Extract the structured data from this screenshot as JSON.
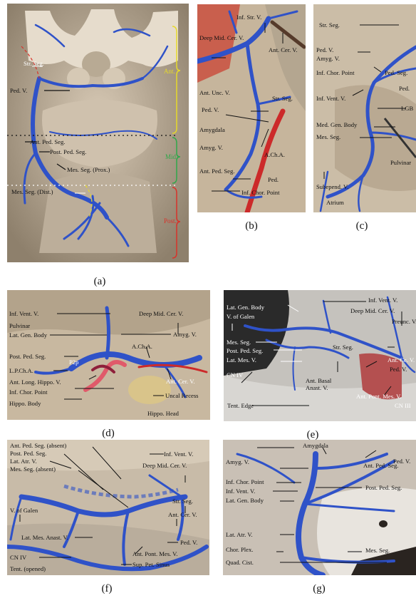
{
  "captions": {
    "a": "(a)",
    "b": "(b)",
    "c": "(c)",
    "d": "(d)",
    "e": "(e)",
    "f": "(f)",
    "g": "(g)"
  },
  "panel_a": {
    "str_seg": "Str. Seg.",
    "ped_v": "Ped. V.",
    "ant_ped_seg": "Ant. Ped. Seg.",
    "post_ped_seg": "Post. Ped. Seg.",
    "mes_seg_prox": "Mes. Seg. (Prox.)",
    "mes_seg_dist": "Mes. Seg. (Dist.)",
    "ant": "Ant.",
    "mid": "Mid.",
    "post": "Post."
  },
  "panel_b": {
    "inf_str_v": "Inf. Str. V.",
    "deep_mid_cer_v": "Deep Mid. Cer. V.",
    "ant_cer_v": "Ant. Cer. V.",
    "ant_unc_v": "Ant. Unc. V.",
    "str_seg": "Str. Seg.",
    "ped_v": "Ped. V.",
    "amygdala": "Amygdala",
    "amyg_v": "Amyg. V.",
    "acha": "A.Ch.A.",
    "ant_ped_seg": "Ant. Ped. Seg.",
    "ped": "Ped.",
    "inf_chor_point": "Inf. Chor. Point"
  },
  "panel_c": {
    "str_seg": "Str. Seg.",
    "ped_v": "Ped. V.",
    "amyg_v": "Amyg. V.",
    "inf_chor_point": "Inf. Chor. Point",
    "ped_seg": "Ped. Seg.",
    "ped": "Ped.",
    "inf_vent_v": "Inf. Vent. V.",
    "lgb": "LGB",
    "med_gen_body": "Med. Gen. Body",
    "mes_seg": "Mes. Seg.",
    "pulvinar": "Pulvinar",
    "subepend_v": "Subepend. V.",
    "atrium": "Atrium"
  },
  "panel_d": {
    "inf_vent_v": "Inf. Vent. V.",
    "pulvinar": "Pulvinar",
    "lat_gen_body": "Lat. Gen. Body",
    "post_ped_seg": "Post. Ped. Seg.",
    "p2p": "P2p",
    "lpcha": "L.P.Ch.A.",
    "ant_long_hippo_v": "Ant. Long. Hippo. V.",
    "inf_chor_point": "Inf. Chor. Point",
    "hippo_body": "Hippo. Body",
    "deep_mid_cer_v": "Deep Mid. Cer. V.",
    "amyg_v": "Amyg. V.",
    "acha": "A.Ch.A.",
    "ant_cer_v": "Ant. Cer. V.",
    "uncal_recess": "Uncal Recess",
    "hippo_head": "Hippo. Head"
  },
  "panel_e": {
    "lat_gen_body": "Lat. Gen. Body",
    "v_galen": "V. of Galen",
    "mes_seg": "Mes. Seg.",
    "post_ped_seg": "Post. Ped. Seg.",
    "lat_mes_v": "Lat. Mes. V.",
    "cn_iv": "CN IV",
    "ant_basal_anast_v": "Ant. Basal\nAnast. V.",
    "inf_vent_v": "Inf. Vent. V.",
    "deep_mid_cer_v": "Deep Mid. Cer. V.",
    "preunc_v": "Preunc. V.",
    "str_seg": "Str. Seg.",
    "ant_ce_v": "Ant. Ce. V.",
    "ped_v": "Ped. V.",
    "ant_pont_mes_v": "Ant. Pont. Mes. V.",
    "cn_iii": "CN III",
    "tent_edge": "Tent. Edge"
  },
  "panel_f": {
    "ant_ped_seg_absent": "Ant. Ped. Seg. (absent)",
    "post_ped_seg": "Post. Ped. Seg.",
    "lat_atr_v": "Lat. Atr. V.",
    "mes_seg_absent": "Mes. Seg. (absent)",
    "v_galen": "V. of Galen",
    "lat_mes_anast_v": "Lat. Mes. Anast. V.",
    "cn_iv": "CN IV",
    "tent_opened": "Tent. (opened)",
    "inf_vent_v": "Inf. Vent. V.",
    "deep_mid_cer_v": "Deep Mid. Cer. V.",
    "str_seg": "Str. Seg.",
    "ant_cer_v": "Ant. Cer. V.",
    "ped_v": "Ped. V.",
    "ant_pont_mes_v": "Ant. Pont. Mes. V.",
    "sup_pet_sinus": "Sup. Pet. Sinus"
  },
  "panel_g": {
    "amygdala": "Amygdala",
    "amyg_v": "Amyg. V.",
    "ped_v": "Ped. V.",
    "ant_ped_seg": "Ant. Ped. Seg.",
    "inf_chor_point": "Inf. Chor. Point",
    "inf_vent_v": "Inf. Vent. V.",
    "lat_gen_body": "Lat. Gen. Body",
    "post_ped_seg": "Post. Ped. Seg.",
    "lat_atr_v": "Lat. Atr. V.",
    "chor_plex": "Chor. Plex.",
    "mes_seg": "Mes. Seg.",
    "quad_cist": "Quad. Cist."
  },
  "colors": {
    "vein": "#2f52c8",
    "artery": "#cc2a2a",
    "tissue": "#c9bba8",
    "ant_brace": "#e6d92a",
    "mid_brace": "#2fa84a",
    "post_brace": "#d8322a"
  }
}
